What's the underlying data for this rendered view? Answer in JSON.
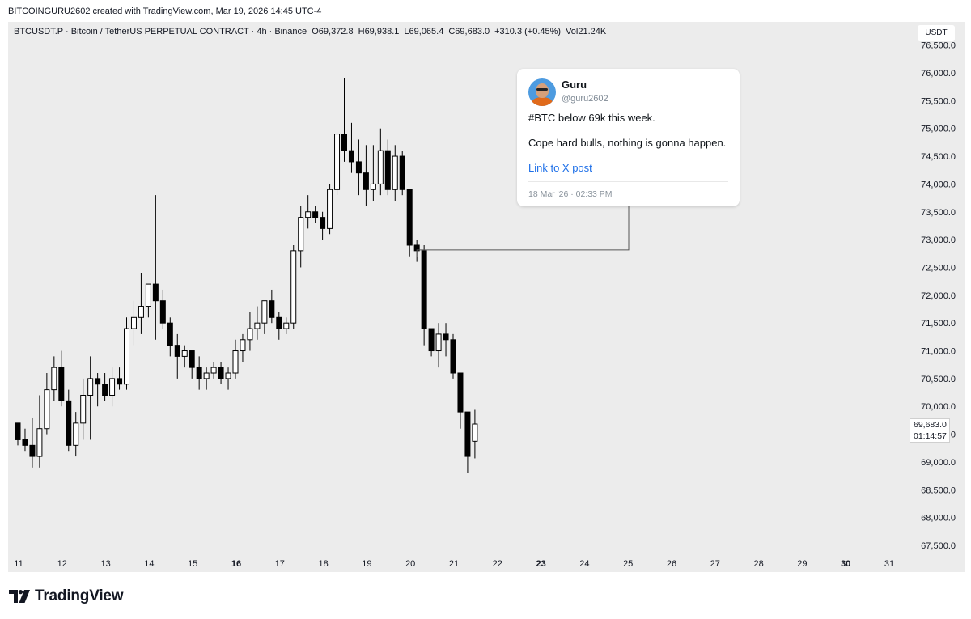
{
  "header": {
    "caption": "BITCOINGURU2602 created with TradingView.com, Mar 19, 2026 14:45 UTC-4"
  },
  "symbol": {
    "description": "BTCUSDT.P · Bitcoin / TetherUS PERPETUAL CONTRACT · 4h · Binance",
    "open_label": "O",
    "open": "69,372.8",
    "high_label": "H",
    "high": "69,938.1",
    "low_label": "L",
    "low": "69,065.4",
    "close_label": "C",
    "close": "69,683.0",
    "change": "+310.3 (+0.45%)",
    "volume_label": "Vol",
    "volume": "21.24K"
  },
  "currency": "USDT",
  "last_price": {
    "price": "69,683.0",
    "countdown": "01:14:57"
  },
  "post": {
    "author_name": "Guru",
    "author_handle": "@guru2602",
    "line1": "#BTC below 69k this week.",
    "line2": "Cope hard bulls, nothing is gonna happen.",
    "link_text": "Link to X post",
    "date": "18 Mar '26 · 02:33 PM"
  },
  "brand": {
    "name": "TradingView",
    "logo_icon": "tradingview-logo-icon"
  },
  "colors": {
    "background": "#ececec",
    "up_candle": "#ffffff",
    "down_candle": "#000000",
    "wick": "#000000",
    "link": "#1d6fe8"
  },
  "chart_data": {
    "type": "candlestick",
    "timeframe": "4h",
    "ylim": [
      67250,
      76400
    ],
    "y_ticks": [
      "67,500.0",
      "68,000.0",
      "68,500.0",
      "69,000.0",
      "69,500.0",
      "70,000.0",
      "70,500.0",
      "71,000.0",
      "71,500.0",
      "72,000.0",
      "72,500.0",
      "73,000.0",
      "73,500.0",
      "74,000.0",
      "74,500.0",
      "75,000.0",
      "75,500.0",
      "76,000.0",
      "76,500.0"
    ],
    "y_tick_values": [
      67500,
      68000,
      68500,
      69000,
      69500,
      70000,
      70500,
      71000,
      71500,
      72000,
      72500,
      73000,
      73500,
      74000,
      74500,
      75000,
      75500,
      76000,
      76500
    ],
    "x_ticks": [
      {
        "label": "11",
        "bold": false
      },
      {
        "label": "12",
        "bold": false
      },
      {
        "label": "13",
        "bold": false
      },
      {
        "label": "14",
        "bold": false
      },
      {
        "label": "15",
        "bold": false
      },
      {
        "label": "16",
        "bold": true
      },
      {
        "label": "17",
        "bold": false
      },
      {
        "label": "18",
        "bold": false
      },
      {
        "label": "19",
        "bold": false
      },
      {
        "label": "20",
        "bold": false
      },
      {
        "label": "21",
        "bold": false
      },
      {
        "label": "22",
        "bold": false
      },
      {
        "label": "23",
        "bold": true
      },
      {
        "label": "24",
        "bold": false
      },
      {
        "label": "25",
        "bold": false
      },
      {
        "label": "26",
        "bold": false
      },
      {
        "label": "27",
        "bold": false
      },
      {
        "label": "28",
        "bold": false
      },
      {
        "label": "29",
        "bold": false
      },
      {
        "label": "30",
        "bold": true
      },
      {
        "label": "31",
        "bold": false
      }
    ],
    "first_candle_day": 11,
    "candles_per_day": 6,
    "candles": [
      [
        69700,
        69700,
        69300,
        69400
      ],
      [
        69400,
        69600,
        69200,
        69300
      ],
      [
        69300,
        69800,
        68900,
        69100
      ],
      [
        69100,
        70200,
        68900,
        69600
      ],
      [
        69600,
        70600,
        69500,
        70300
      ],
      [
        70300,
        70900,
        70100,
        70700
      ],
      [
        70700,
        71000,
        70000,
        70100
      ],
      [
        70100,
        70300,
        69200,
        69300
      ],
      [
        69300,
        69900,
        69100,
        69700
      ],
      [
        69700,
        70500,
        69400,
        70200
      ],
      [
        70200,
        70900,
        69400,
        70500
      ],
      [
        70500,
        70600,
        70000,
        70400
      ],
      [
        70400,
        70600,
        70100,
        70200
      ],
      [
        70200,
        70700,
        70000,
        70500
      ],
      [
        70500,
        70700,
        70300,
        70400
      ],
      [
        70400,
        71600,
        70300,
        71400
      ],
      [
        71400,
        71900,
        71100,
        71600
      ],
      [
        71600,
        72400,
        71300,
        71800
      ],
      [
        71800,
        72200,
        71600,
        72200
      ],
      [
        72200,
        73800,
        71200,
        71900
      ],
      [
        71900,
        72100,
        71400,
        71500
      ],
      [
        71500,
        71600,
        70900,
        71100
      ],
      [
        71100,
        71300,
        70500,
        70900
      ],
      [
        70900,
        71100,
        70700,
        71000
      ],
      [
        71000,
        71000,
        70500,
        70700
      ],
      [
        70700,
        70900,
        70300,
        70500
      ],
      [
        70500,
        70700,
        70300,
        70600
      ],
      [
        70600,
        70800,
        70500,
        70700
      ],
      [
        70700,
        70800,
        70400,
        70500
      ],
      [
        70500,
        70700,
        70300,
        70600
      ],
      [
        70600,
        71200,
        70500,
        71000
      ],
      [
        71000,
        71300,
        70800,
        71200
      ],
      [
        71200,
        71700,
        71000,
        71400
      ],
      [
        71400,
        71800,
        71200,
        71500
      ],
      [
        71500,
        71900,
        71300,
        71900
      ],
      [
        71900,
        72100,
        71500,
        71600
      ],
      [
        71600,
        71700,
        71200,
        71400
      ],
      [
        71400,
        71600,
        71300,
        71500
      ],
      [
        71500,
        72900,
        71400,
        72800
      ],
      [
        72800,
        73600,
        72500,
        73400
      ],
      [
        73400,
        73800,
        73200,
        73500
      ],
      [
        73500,
        73600,
        73300,
        73400
      ],
      [
        73400,
        73500,
        73000,
        73200
      ],
      [
        73200,
        74000,
        73100,
        73900
      ],
      [
        73900,
        74900,
        73800,
        74900
      ],
      [
        74900,
        75900,
        74400,
        74600
      ],
      [
        74600,
        75100,
        74200,
        74400
      ],
      [
        74400,
        74800,
        73800,
        74200
      ],
      [
        74200,
        74700,
        73600,
        73900
      ],
      [
        73900,
        74700,
        73700,
        74000
      ],
      [
        74000,
        75000,
        73800,
        74600
      ],
      [
        74600,
        74800,
        73800,
        73900
      ],
      [
        73900,
        74700,
        73700,
        74500
      ],
      [
        74500,
        74600,
        73800,
        73900
      ],
      [
        73900,
        73900,
        72700,
        72900
      ],
      [
        72900,
        73000,
        72600,
        72800
      ],
      [
        72800,
        72900,
        71100,
        71400
      ],
      [
        71400,
        71400,
        70900,
        71000
      ],
      [
        71000,
        71500,
        70700,
        71300
      ],
      [
        71300,
        71500,
        70900,
        71200
      ],
      [
        71200,
        71300,
        70500,
        70600
      ],
      [
        70600,
        70600,
        69600,
        69900
      ],
      [
        69900,
        69900,
        68800,
        69100
      ],
      [
        69372.8,
        69938.1,
        69065.4,
        69683.0
      ]
    ],
    "callout_anchor_price": 72800
  }
}
